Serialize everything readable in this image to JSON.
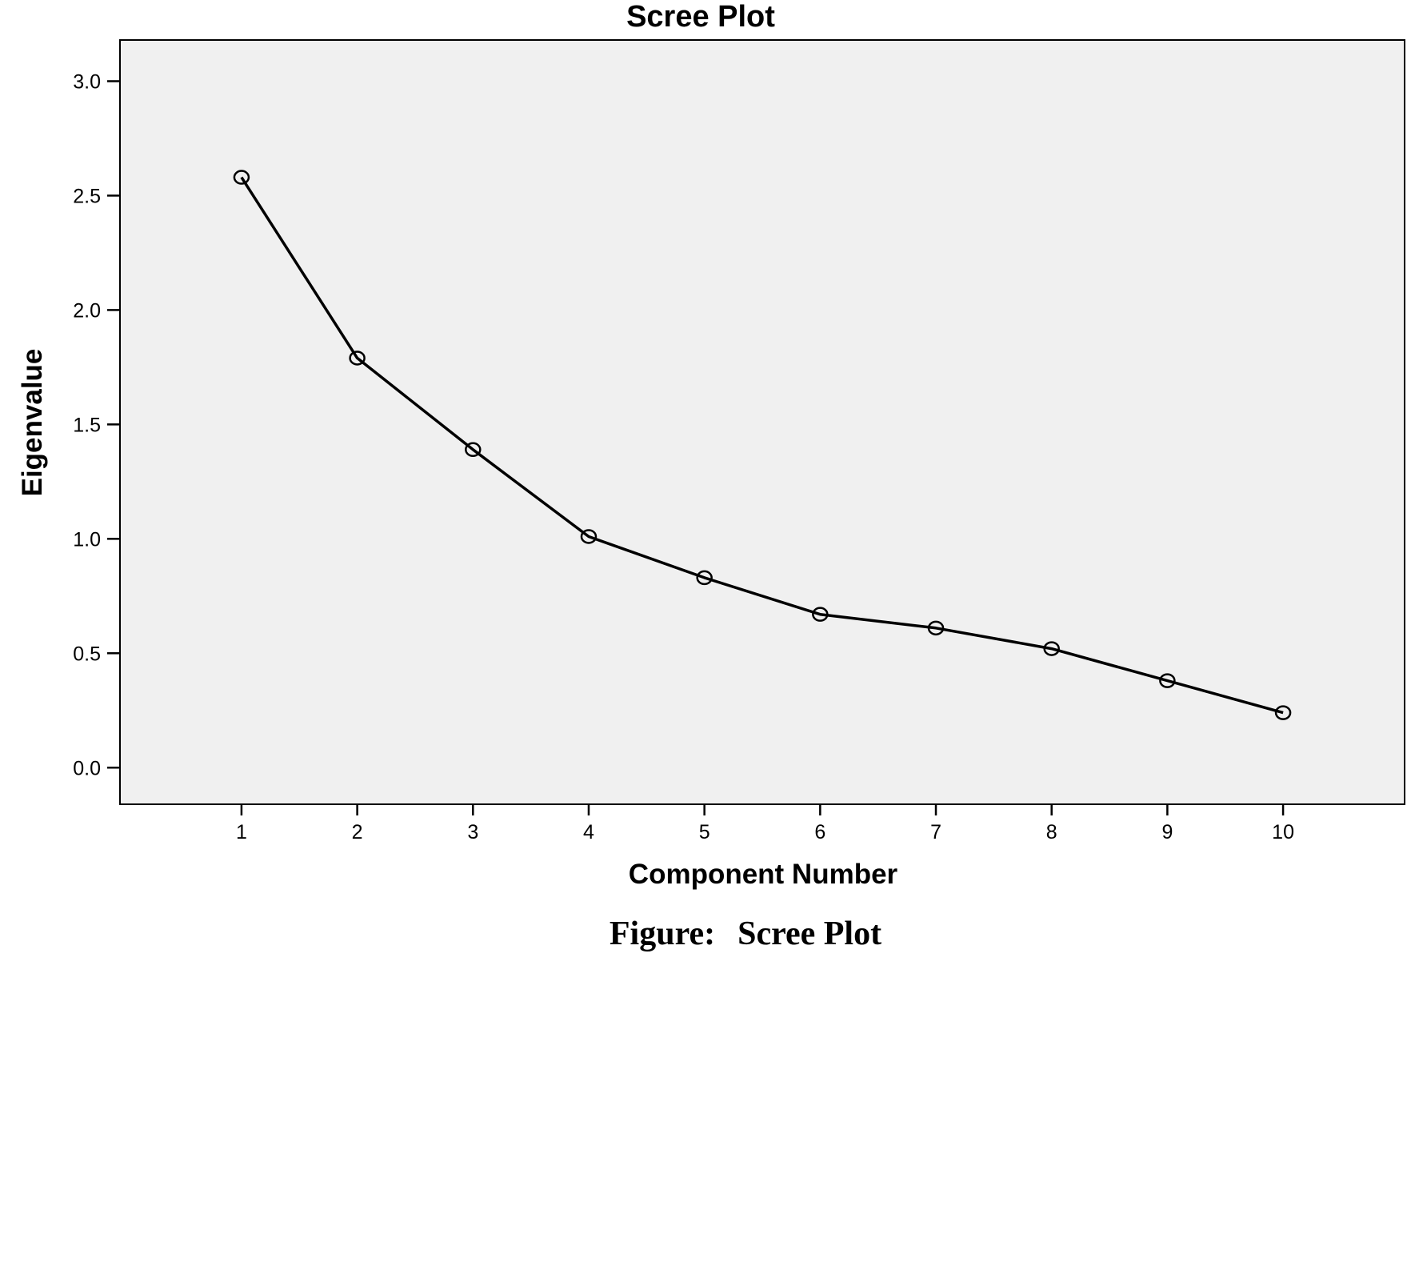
{
  "chart_data": {
    "type": "line",
    "title": "Scree Plot",
    "xlabel": "Component Number",
    "ylabel": "Eigenvalue",
    "x": [
      1,
      2,
      3,
      4,
      5,
      6,
      7,
      8,
      9,
      10
    ],
    "x_tick_labels": [
      "1",
      "2",
      "3",
      "4",
      "5",
      "6",
      "7",
      "8",
      "9",
      "10"
    ],
    "xlim": [
      -0.05,
      11.05
    ],
    "ylim": [
      -0.16,
      3.18
    ],
    "y_ticks": [
      0.0,
      0.5,
      1.0,
      1.5,
      2.0,
      2.5,
      3.0
    ],
    "y_tick_labels": [
      "0.0",
      "0.5",
      "1.0",
      "1.5",
      "2.0",
      "2.5",
      "3.0"
    ],
    "series": [
      {
        "values": [
          2.58,
          1.79,
          1.39,
          1.01,
          0.83,
          0.67,
          0.61,
          0.52,
          0.38,
          0.24
        ],
        "marker": "open-circle"
      }
    ],
    "grid": false,
    "legend": "none",
    "colors": {
      "plot_background": "#f0f0f0",
      "line": "#000000",
      "marker": "#000000"
    }
  },
  "caption": {
    "prefix": "Figure:",
    "text": "Scree Plot"
  }
}
